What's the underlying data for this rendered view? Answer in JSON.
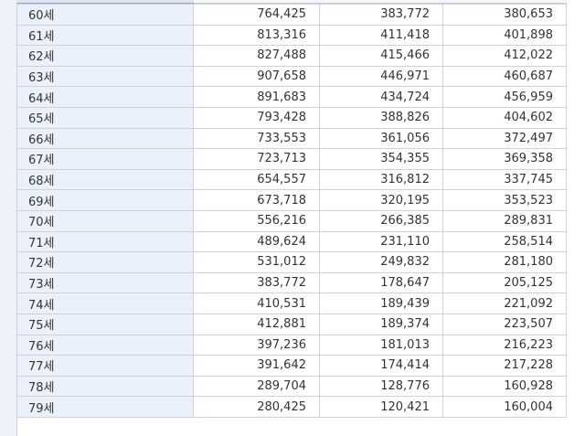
{
  "table": {
    "rows": [
      {
        "age": "60세",
        "total": "764,425",
        "male": "383,772",
        "female": "380,653"
      },
      {
        "age": "61세",
        "total": "813,316",
        "male": "411,418",
        "female": "401,898"
      },
      {
        "age": "62세",
        "total": "827,488",
        "male": "415,466",
        "female": "412,022"
      },
      {
        "age": "63세",
        "total": "907,658",
        "male": "446,971",
        "female": "460,687"
      },
      {
        "age": "64세",
        "total": "891,683",
        "male": "434,724",
        "female": "456,959"
      },
      {
        "age": "65세",
        "total": "793,428",
        "male": "388,826",
        "female": "404,602"
      },
      {
        "age": "66세",
        "total": "733,553",
        "male": "361,056",
        "female": "372,497"
      },
      {
        "age": "67세",
        "total": "723,713",
        "male": "354,355",
        "female": "369,358"
      },
      {
        "age": "68세",
        "total": "654,557",
        "male": "316,812",
        "female": "337,745"
      },
      {
        "age": "69세",
        "total": "673,718",
        "male": "320,195",
        "female": "353,523"
      },
      {
        "age": "70세",
        "total": "556,216",
        "male": "266,385",
        "female": "289,831"
      },
      {
        "age": "71세",
        "total": "489,624",
        "male": "231,110",
        "female": "258,514"
      },
      {
        "age": "72세",
        "total": "531,012",
        "male": "249,832",
        "female": "281,180"
      },
      {
        "age": "73세",
        "total": "383,772",
        "male": "178,647",
        "female": "205,125"
      },
      {
        "age": "74세",
        "total": "410,531",
        "male": "189,439",
        "female": "221,092"
      },
      {
        "age": "75세",
        "total": "412,881",
        "male": "189,374",
        "female": "223,507"
      },
      {
        "age": "76세",
        "total": "397,236",
        "male": "181,013",
        "female": "216,223"
      },
      {
        "age": "77세",
        "total": "391,642",
        "male": "174,414",
        "female": "217,228"
      },
      {
        "age": "78세",
        "total": "289,704",
        "male": "128,776",
        "female": "160,928"
      },
      {
        "age": "79세",
        "total": "280,425",
        "male": "120,421",
        "female": "160,004"
      }
    ]
  }
}
